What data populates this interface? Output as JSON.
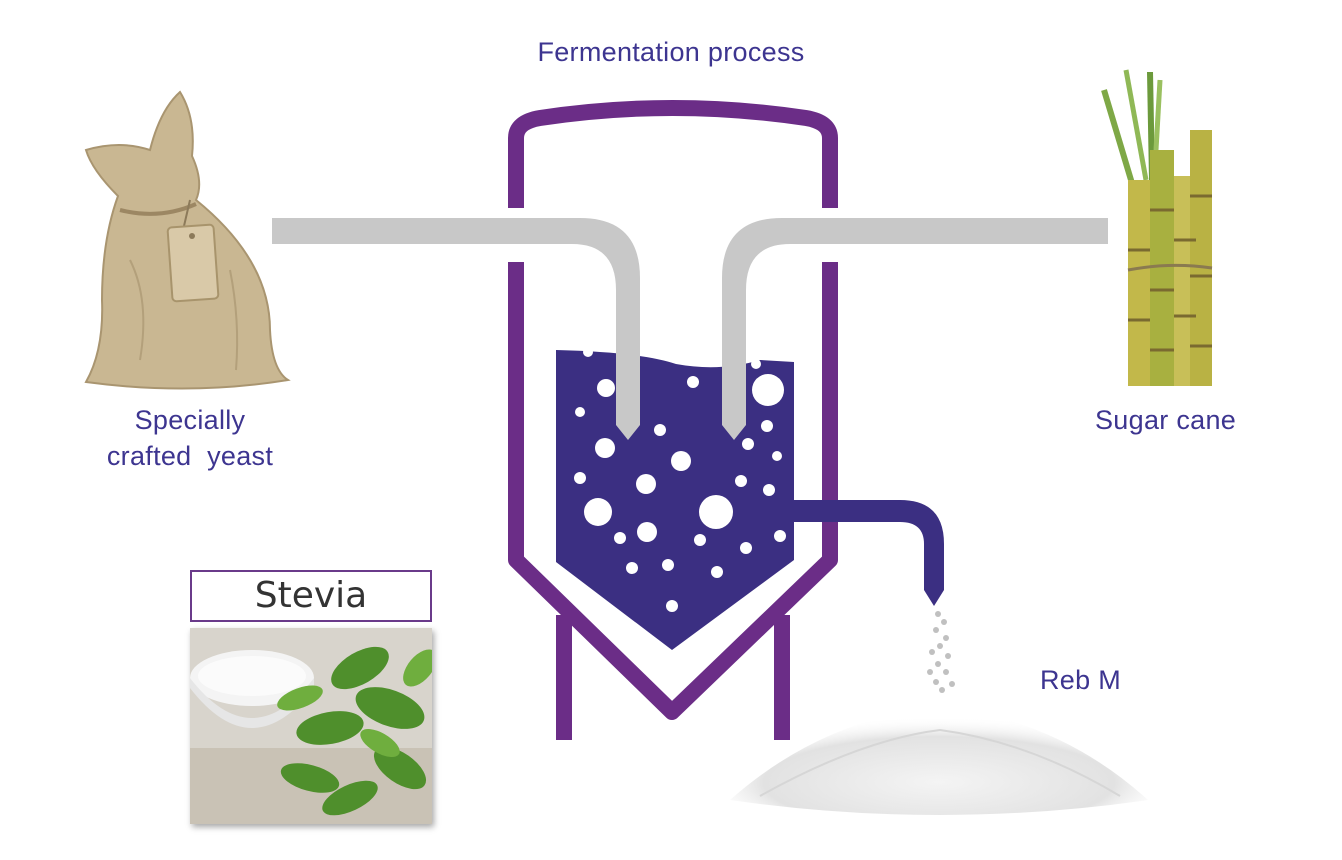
{
  "title": "Fermentation process",
  "labels": {
    "yeast_line1": "Specially",
    "yeast_line2": "crafted  yeast",
    "sugar_cane": "Sugar cane",
    "reb_m": "Reb M",
    "stevia": "Stevia"
  },
  "colors": {
    "label_text": "#3d3590",
    "vessel_outline": "#6b2d87",
    "liquid": "#3b2f82",
    "pipe": "#c8c8c8"
  },
  "icons": {
    "yeast": "burlap-sack-with-tag",
    "cane": "sugar-cane-bundle",
    "stevia": "stevia-leaves-and-sugar-bowl",
    "reb_m": "white-powder-pile"
  }
}
